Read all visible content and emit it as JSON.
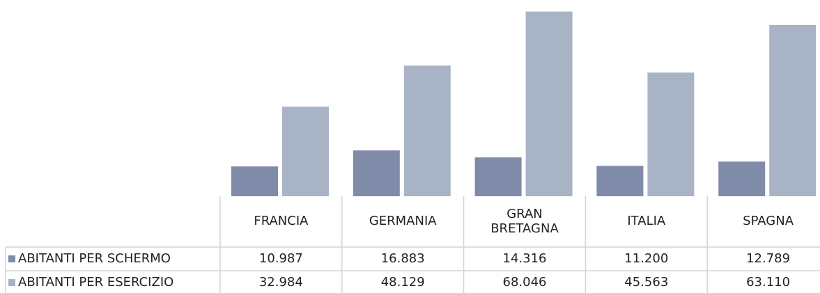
{
  "chart_data": {
    "type": "bar",
    "categories": [
      "FRANCIA",
      "GERMANIA",
      "GRAN BRETAGNA",
      "ITALIA",
      "SPAGNA"
    ],
    "series": [
      {
        "name": "ABITANTI PER SCHERMO",
        "color": "#7f8ba8",
        "values": [
          10987,
          16883,
          14316,
          11200,
          12789
        ],
        "value_labels": [
          "10.987",
          "16.883",
          "14.316",
          "11.200",
          "12.789"
        ]
      },
      {
        "name": "ABITANTI PER ESERCIZIO",
        "color": "#a9b3c6",
        "values": [
          32984,
          48129,
          68046,
          45563,
          63110
        ],
        "value_labels": [
          "32.984",
          "48.129",
          "68.046",
          "45.563",
          "63.110"
        ]
      }
    ],
    "ylim": [
      0,
      70000
    ],
    "grid": false
  }
}
